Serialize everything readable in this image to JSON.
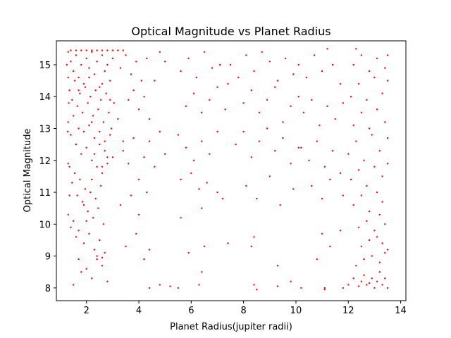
{
  "chart_data": {
    "type": "scatter",
    "title": "Optical Magnitude vs Planet Radius",
    "xlabel": "Planet Radius(jupiter radii)",
    "ylabel": "Optical Magnitude",
    "xlim": [
      0.85,
      14.2
    ],
    "ylim": [
      7.6,
      15.75
    ],
    "xticks": [
      2,
      4,
      6,
      8,
      10,
      12,
      14
    ],
    "yticks": [
      8,
      9,
      10,
      11,
      12,
      13,
      14,
      15
    ],
    "grid": false,
    "marker_color": "#ff0000",
    "series": [
      {
        "points": [
          [
            1.3,
            15.4
          ],
          [
            1.4,
            15.1
          ],
          [
            1.5,
            14.8
          ],
          [
            1.6,
            15.3
          ],
          [
            1.7,
            14.6
          ],
          [
            1.8,
            15.0
          ],
          [
            1.9,
            14.4
          ],
          [
            2.0,
            15.2
          ],
          [
            2.1,
            14.9
          ],
          [
            2.2,
            15.4
          ],
          [
            2.3,
            14.7
          ],
          [
            2.4,
            15.1
          ],
          [
            2.5,
            14.3
          ],
          [
            2.6,
            15.3
          ],
          [
            2.7,
            14.8
          ],
          [
            2.8,
            15.0
          ],
          [
            2.9,
            14.5
          ],
          [
            3.0,
            15.2
          ],
          [
            1.35,
            14.2
          ],
          [
            1.45,
            13.9
          ],
          [
            1.55,
            14.5
          ],
          [
            1.65,
            13.7
          ],
          [
            1.75,
            14.1
          ],
          [
            1.85,
            13.5
          ],
          [
            1.95,
            14.3
          ],
          [
            2.05,
            13.8
          ],
          [
            2.15,
            14.0
          ],
          [
            2.25,
            13.4
          ],
          [
            2.35,
            14.2
          ],
          [
            2.45,
            13.6
          ],
          [
            2.55,
            13.9
          ],
          [
            2.65,
            13.2
          ],
          [
            2.75,
            14.1
          ],
          [
            2.85,
            13.5
          ],
          [
            2.95,
            13.0
          ],
          [
            3.05,
            13.8
          ],
          [
            1.3,
            13.2
          ],
          [
            1.4,
            12.8
          ],
          [
            1.5,
            13.4
          ],
          [
            1.6,
            12.5
          ],
          [
            1.7,
            13.0
          ],
          [
            1.8,
            12.2
          ],
          [
            1.9,
            12.9
          ],
          [
            2.0,
            12.4
          ],
          [
            2.1,
            13.1
          ],
          [
            2.2,
            12.0
          ],
          [
            2.3,
            12.7
          ],
          [
            2.4,
            11.8
          ],
          [
            2.5,
            12.5
          ],
          [
            2.6,
            11.6
          ],
          [
            2.7,
            12.3
          ],
          [
            2.8,
            11.9
          ],
          [
            2.9,
            12.8
          ],
          [
            3.0,
            12.1
          ],
          [
            3.2,
            13.3
          ],
          [
            3.4,
            12.6
          ],
          [
            1.35,
            11.8
          ],
          [
            1.45,
            11.3
          ],
          [
            1.55,
            11.6
          ],
          [
            1.65,
            10.9
          ],
          [
            1.75,
            11.4
          ],
          [
            1.85,
            10.7
          ],
          [
            1.95,
            11.1
          ],
          [
            2.05,
            10.4
          ],
          [
            2.15,
            11.0
          ],
          [
            2.25,
            10.2
          ],
          [
            2.35,
            10.8
          ],
          [
            2.45,
            10.5
          ],
          [
            2.55,
            11.2
          ],
          [
            2.65,
            10.0
          ],
          [
            1.3,
            10.3
          ],
          [
            1.4,
            9.9
          ],
          [
            1.5,
            10.1
          ],
          [
            1.6,
            9.6
          ],
          [
            1.7,
            9.8
          ],
          [
            1.9,
            9.4
          ],
          [
            2.1,
            9.7
          ],
          [
            2.3,
            9.2
          ],
          [
            2.5,
            9.5
          ],
          [
            2.7,
            9.1
          ],
          [
            1.5,
            8.1
          ],
          [
            1.8,
            8.5
          ],
          [
            2.2,
            8.3
          ],
          [
            2.4,
            8.9
          ],
          [
            2.6,
            8.7
          ],
          [
            2.8,
            8.2
          ],
          [
            2.4,
            9.0
          ],
          [
            2.6,
            8.95
          ],
          [
            1.7,
            8.9
          ],
          [
            2.0,
            8.6
          ],
          [
            3.3,
            14.9
          ],
          [
            3.5,
            15.3
          ],
          [
            3.7,
            14.7
          ],
          [
            3.9,
            15.1
          ],
          [
            4.1,
            14.5
          ],
          [
            4.3,
            15.2
          ],
          [
            3.6,
            13.9
          ],
          [
            3.8,
            14.2
          ],
          [
            4.0,
            13.6
          ],
          [
            4.2,
            14.0
          ],
          [
            4.4,
            13.3
          ],
          [
            4.6,
            14.5
          ],
          [
            4.8,
            15.4
          ],
          [
            5.0,
            15.1
          ],
          [
            3.4,
            12.3
          ],
          [
            3.6,
            11.9
          ],
          [
            3.8,
            12.7
          ],
          [
            4.0,
            11.4
          ],
          [
            4.2,
            12.1
          ],
          [
            4.4,
            12.6
          ],
          [
            4.6,
            11.8
          ],
          [
            4.8,
            12.9
          ],
          [
            5.0,
            12.2
          ],
          [
            3.3,
            10.6
          ],
          [
            3.7,
            10.9
          ],
          [
            4.0,
            10.3
          ],
          [
            4.3,
            11.0
          ],
          [
            3.5,
            9.3
          ],
          [
            3.9,
            9.7
          ],
          [
            4.2,
            8.9
          ],
          [
            4.4,
            9.2
          ],
          [
            4.4,
            8.0
          ],
          [
            4.8,
            8.1
          ],
          [
            5.2,
            8.05
          ],
          [
            5.5,
            8.0
          ],
          [
            6.3,
            8.1
          ],
          [
            5.6,
            14.8
          ],
          [
            5.9,
            15.2
          ],
          [
            6.2,
            14.6
          ],
          [
            6.5,
            15.4
          ],
          [
            6.8,
            14.9
          ],
          [
            7.1,
            15.0
          ],
          [
            7.4,
            14.4
          ],
          [
            5.8,
            13.7
          ],
          [
            6.1,
            14.1
          ],
          [
            6.4,
            13.5
          ],
          [
            6.7,
            13.9
          ],
          [
            7.0,
            14.3
          ],
          [
            7.3,
            13.6
          ],
          [
            5.5,
            12.8
          ],
          [
            5.8,
            12.4
          ],
          [
            6.1,
            12.0
          ],
          [
            6.4,
            12.6
          ],
          [
            6.7,
            12.2
          ],
          [
            7.0,
            12.9
          ],
          [
            5.6,
            11.4
          ],
          [
            6.0,
            11.6
          ],
          [
            6.3,
            11.1
          ],
          [
            6.6,
            11.3
          ],
          [
            7.0,
            11.0
          ],
          [
            5.6,
            10.2
          ],
          [
            6.4,
            10.5
          ],
          [
            7.2,
            10.8
          ],
          [
            5.9,
            9.1
          ],
          [
            6.5,
            9.3
          ],
          [
            7.4,
            9.4
          ],
          [
            6.4,
            8.5
          ],
          [
            7.5,
            15.0
          ],
          [
            7.8,
            14.6
          ],
          [
            8.1,
            15.3
          ],
          [
            8.4,
            14.8
          ],
          [
            8.7,
            15.4
          ],
          [
            9.0,
            15.1
          ],
          [
            9.3,
            14.5
          ],
          [
            9.6,
            15.2
          ],
          [
            9.9,
            14.7
          ],
          [
            8.0,
            13.8
          ],
          [
            8.3,
            14.2
          ],
          [
            8.6,
            13.5
          ],
          [
            8.9,
            13.9
          ],
          [
            9.2,
            14.3
          ],
          [
            9.5,
            13.2
          ],
          [
            9.8,
            13.7
          ],
          [
            10.1,
            14.0
          ],
          [
            7.7,
            12.5
          ],
          [
            8.0,
            12.9
          ],
          [
            8.3,
            12.1
          ],
          [
            8.6,
            12.6
          ],
          [
            8.9,
            13.0
          ],
          [
            9.2,
            12.3
          ],
          [
            9.5,
            12.7
          ],
          [
            9.8,
            11.9
          ],
          [
            10.1,
            12.4
          ],
          [
            8.1,
            11.2
          ],
          [
            8.5,
            10.8
          ],
          [
            9.0,
            11.5
          ],
          [
            9.4,
            10.6
          ],
          [
            9.9,
            11.1
          ],
          [
            8.4,
            9.6
          ],
          [
            8.3,
            9.3
          ],
          [
            9.3,
            8.7
          ],
          [
            9.8,
            8.2
          ],
          [
            8.4,
            8.1
          ],
          [
            8.5,
            7.95
          ],
          [
            9.3,
            8.05
          ],
          [
            10.2,
            8.0
          ],
          [
            10.1,
            15.0
          ],
          [
            10.4,
            14.6
          ],
          [
            10.7,
            15.3
          ],
          [
            11.0,
            14.8
          ],
          [
            11.2,
            15.5
          ],
          [
            11.4,
            15.0
          ],
          [
            11.7,
            14.4
          ],
          [
            10.3,
            13.5
          ],
          [
            10.6,
            13.9
          ],
          [
            10.9,
            13.1
          ],
          [
            11.2,
            13.7
          ],
          [
            11.5,
            13.3
          ],
          [
            11.8,
            13.8
          ],
          [
            10.2,
            12.4
          ],
          [
            10.5,
            12.0
          ],
          [
            10.8,
            12.6
          ],
          [
            11.1,
            11.8
          ],
          [
            11.4,
            12.3
          ],
          [
            11.7,
            11.6
          ],
          [
            10.6,
            11.2
          ],
          [
            11.0,
            10.8
          ],
          [
            11.3,
            11.4
          ],
          [
            11.8,
            10.9
          ],
          [
            11.0,
            9.7
          ],
          [
            11.3,
            9.3
          ],
          [
            11.7,
            9.8
          ],
          [
            10.8,
            8.9
          ],
          [
            11.1,
            8.0
          ],
          [
            11.1,
            7.95
          ],
          [
            11.8,
            8.0
          ],
          [
            12.0,
            8.1
          ],
          [
            12.2,
            8.3
          ],
          [
            12.4,
            8.05
          ],
          [
            12.5,
            8.2
          ],
          [
            12.6,
            8.4
          ],
          [
            12.7,
            8.1
          ],
          [
            12.8,
            8.15
          ],
          [
            12.9,
            8.3
          ],
          [
            13.0,
            8.0
          ],
          [
            13.1,
            8.2
          ],
          [
            13.2,
            8.5
          ],
          [
            13.3,
            8.1
          ],
          [
            13.4,
            8.3
          ],
          [
            13.5,
            8.0
          ],
          [
            12.3,
            8.7
          ],
          [
            12.6,
            8.9
          ],
          [
            12.9,
            9.0
          ],
          [
            13.2,
            8.8
          ],
          [
            13.4,
            9.1
          ],
          [
            12.5,
            9.3
          ],
          [
            12.8,
            9.5
          ],
          [
            13.1,
            9.6
          ],
          [
            13.3,
            9.4
          ],
          [
            13.5,
            9.2
          ],
          [
            12.4,
            9.9
          ],
          [
            12.7,
            10.1
          ],
          [
            13.0,
            9.8
          ],
          [
            13.2,
            10.3
          ],
          [
            13.4,
            10.0
          ],
          [
            12.2,
            10.6
          ],
          [
            12.5,
            10.9
          ],
          [
            12.8,
            10.4
          ],
          [
            13.1,
            11.0
          ],
          [
            13.3,
            10.7
          ],
          [
            12.1,
            11.4
          ],
          [
            12.4,
            11.7
          ],
          [
            12.7,
            11.2
          ],
          [
            13.0,
            11.8
          ],
          [
            13.3,
            11.5
          ],
          [
            13.5,
            11.9
          ],
          [
            12.0,
            12.2
          ],
          [
            12.3,
            12.6
          ],
          [
            12.6,
            12.0
          ],
          [
            12.9,
            12.8
          ],
          [
            13.2,
            12.3
          ],
          [
            13.5,
            12.7
          ],
          [
            12.2,
            13.1
          ],
          [
            12.5,
            13.5
          ],
          [
            12.8,
            13.0
          ],
          [
            13.1,
            13.6
          ],
          [
            13.4,
            13.2
          ],
          [
            12.1,
            14.0
          ],
          [
            12.4,
            14.4
          ],
          [
            12.7,
            13.9
          ],
          [
            13.0,
            14.6
          ],
          [
            13.3,
            14.1
          ],
          [
            13.5,
            14.5
          ],
          [
            12.2,
            15.0
          ],
          [
            12.5,
            15.3
          ],
          [
            12.8,
            14.8
          ],
          [
            13.1,
            15.2
          ],
          [
            13.4,
            14.9
          ],
          [
            12.3,
            15.5
          ],
          [
            13.5,
            15.3
          ],
          [
            1.25,
            15.0
          ],
          [
            1.3,
            14.6
          ],
          [
            1.32,
            13.8
          ],
          [
            1.28,
            12.9
          ],
          [
            1.3,
            11.9
          ],
          [
            1.35,
            10.9
          ],
          [
            1.4,
            15.45
          ],
          [
            1.6,
            15.45
          ],
          [
            1.8,
            15.45
          ],
          [
            2.0,
            15.45
          ],
          [
            2.2,
            15.45
          ],
          [
            2.4,
            15.45
          ],
          [
            2.6,
            15.45
          ],
          [
            2.8,
            15.45
          ],
          [
            3.0,
            15.45
          ],
          [
            3.2,
            15.45
          ],
          [
            3.4,
            15.45
          ],
          [
            1.7,
            14.2
          ],
          [
            2.1,
            14.6
          ],
          [
            2.6,
            14.4
          ],
          [
            2.9,
            13.9
          ],
          [
            2.2,
            13.2
          ],
          [
            2.5,
            12.9
          ],
          [
            2.7,
            12.6
          ],
          [
            2.3,
            12.2
          ],
          [
            2.8,
            12.1
          ],
          [
            2.6,
            11.8
          ],
          [
            2.2,
            11.4
          ],
          [
            1.9,
            10.6
          ],
          [
            2.0,
            10.1
          ]
        ]
      }
    ]
  }
}
